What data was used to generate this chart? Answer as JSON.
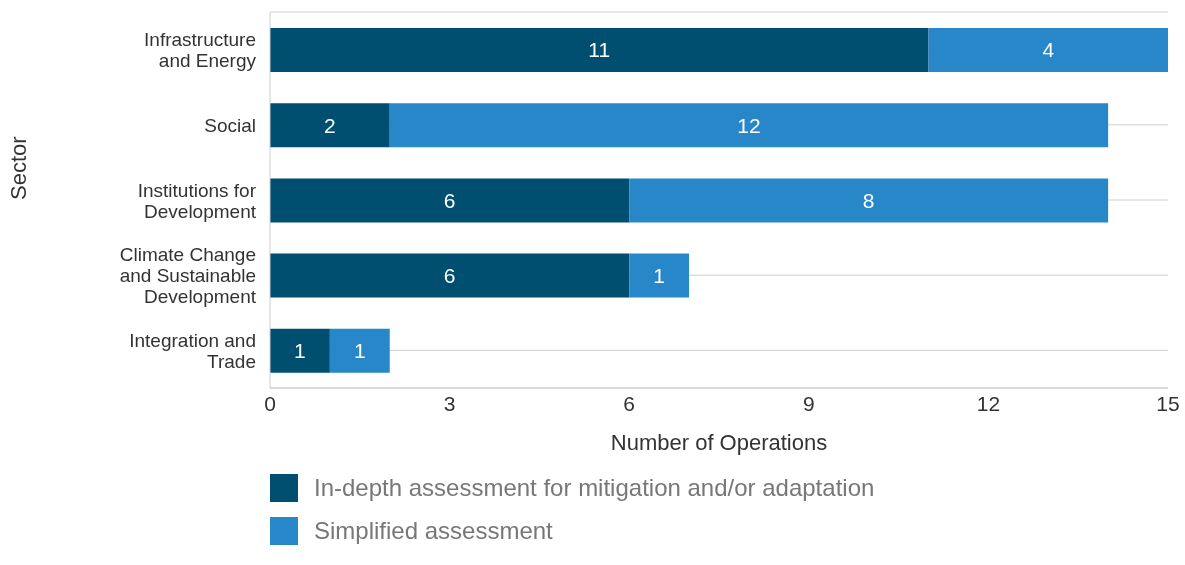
{
  "chart_data": {
    "type": "bar",
    "orientation": "horizontal",
    "stacked": true,
    "ylabel": "Sector",
    "xlabel": "Number of Operations",
    "categories": [
      "Infrastructure and Energy",
      "Social",
      "Institutions for Development",
      "Climate Change and Sustainable Development",
      "Integration and Trade"
    ],
    "series": [
      {
        "name": "In-depth assessment for mitigation and/or adaptation",
        "color": "#004f71",
        "values": [
          11,
          2,
          6,
          6,
          1
        ]
      },
      {
        "name": "Simplified assessment",
        "color": "#2787c8",
        "values": [
          4,
          12,
          8,
          1,
          1
        ]
      }
    ],
    "xlim": [
      0,
      15
    ],
    "xticks": [
      0,
      3,
      6,
      9,
      12,
      15
    ],
    "grid": "y",
    "legend": "bottom",
    "data_labels": true
  }
}
